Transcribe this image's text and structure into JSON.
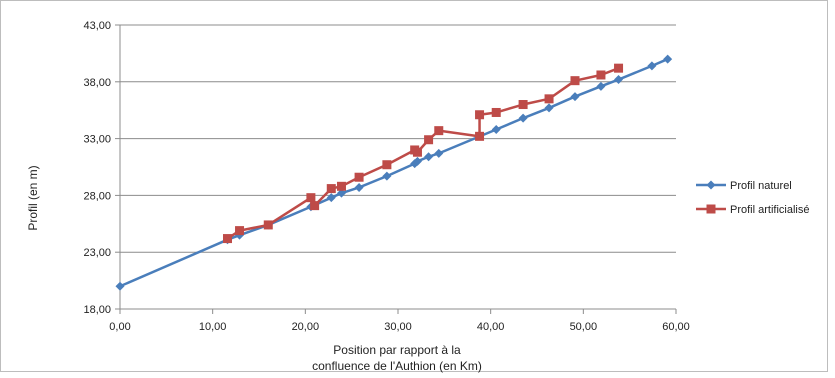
{
  "chart_data": {
    "type": "line",
    "title": "",
    "xlabel_lines": [
      "Position par rapport à la",
      "confluence  de l'Authion (en Km)"
    ],
    "ylabel": "Profil (en m)",
    "xlim": [
      0,
      60
    ],
    "ylim": [
      18,
      43
    ],
    "x_ticks": [
      0,
      10,
      20,
      30,
      40,
      50,
      60
    ],
    "x_tick_labels": [
      "0,00",
      "10,00",
      "20,00",
      "30,00",
      "40,00",
      "50,00",
      "60,00"
    ],
    "y_ticks": [
      18,
      23,
      28,
      33,
      38,
      43
    ],
    "y_tick_labels": [
      "18,00",
      "23,00",
      "28,00",
      "33,00",
      "38,00",
      "43,00"
    ],
    "grid": "horizontal",
    "legend_position": "right",
    "series": [
      {
        "name": "Profil naturel",
        "color": "#4a7ebb",
        "marker": "diamond",
        "x": [
          0.0,
          11.6,
          12.9,
          16.0,
          20.6,
          22.8,
          23.9,
          25.8,
          28.8,
          31.8,
          32.1,
          33.3,
          34.4,
          40.6,
          43.5,
          46.3,
          49.1,
          51.9,
          53.8,
          57.4,
          59.1
        ],
        "y": [
          20.0,
          24.1,
          24.5,
          25.4,
          27.0,
          27.8,
          28.2,
          28.7,
          29.7,
          30.8,
          31.0,
          31.4,
          31.7,
          33.8,
          34.8,
          35.7,
          36.7,
          37.6,
          38.2,
          39.4,
          40.0
        ]
      },
      {
        "name": "Profil artificialisé",
        "color": "#be4b48",
        "marker": "square",
        "x": [
          11.6,
          12.9,
          16.0,
          20.6,
          21.0,
          22.8,
          23.9,
          25.8,
          28.8,
          31.8,
          32.1,
          33.3,
          34.4,
          38.8,
          38.8,
          40.6,
          43.5,
          46.3,
          49.1,
          51.9,
          53.8
        ],
        "y": [
          24.2,
          24.9,
          25.4,
          27.8,
          27.1,
          28.6,
          28.8,
          29.6,
          30.7,
          32.0,
          31.8,
          32.9,
          33.7,
          33.2,
          35.1,
          35.3,
          36.0,
          36.5,
          38.1,
          38.6,
          39.2
        ]
      }
    ]
  }
}
